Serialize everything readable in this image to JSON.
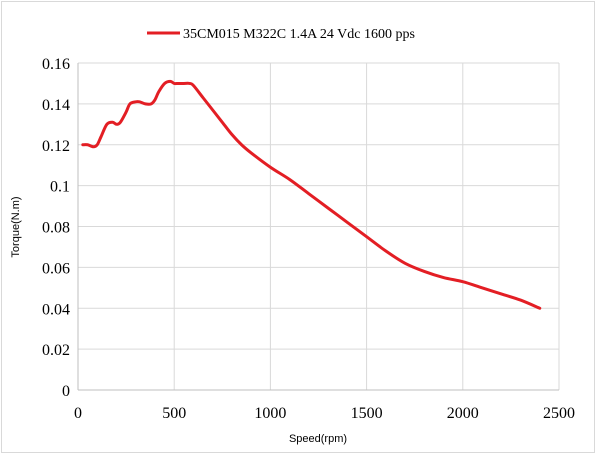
{
  "chart_data": {
    "type": "line",
    "title": "",
    "xlabel": "Speed(rpm)",
    "ylabel": "Torque(N.m)",
    "xlim": [
      0,
      2500
    ],
    "ylim": [
      0,
      0.16
    ],
    "x_ticks": [
      0,
      500,
      1000,
      1500,
      2000,
      2500
    ],
    "x_tick_labels": [
      "0",
      "500",
      "1000",
      "1500",
      "2000",
      "2500"
    ],
    "y_ticks": [
      0,
      0.02,
      0.04,
      0.06,
      0.08,
      0.1,
      0.12,
      0.14,
      0.16
    ],
    "y_tick_labels": [
      "0",
      "0.02",
      "0.04",
      "0.06",
      "0.08",
      "0.1",
      "0.12",
      "0.14",
      "0.16"
    ],
    "grid": true,
    "legend_position": "top",
    "series": [
      {
        "name": "35CM015 M322C 1.4A 24 Vdc  1600 pps",
        "color": "#e31e24",
        "x": [
          25,
          50,
          80,
          100,
          120,
          150,
          180,
          200,
          220,
          250,
          270,
          300,
          320,
          350,
          380,
          400,
          420,
          450,
          480,
          500,
          520,
          550,
          580,
          600,
          650,
          700,
          750,
          800,
          850,
          900,
          1000,
          1100,
          1200,
          1300,
          1400,
          1500,
          1600,
          1700,
          1800,
          1900,
          2000,
          2100,
          2200,
          2300,
          2400
        ],
        "y": [
          0.12,
          0.12,
          0.119,
          0.12,
          0.124,
          0.13,
          0.131,
          0.13,
          0.131,
          0.136,
          0.14,
          0.141,
          0.141,
          0.14,
          0.14,
          0.142,
          0.146,
          0.15,
          0.151,
          0.15,
          0.15,
          0.15,
          0.15,
          0.149,
          0.143,
          0.137,
          0.131,
          0.125,
          0.12,
          0.116,
          0.109,
          0.103,
          0.096,
          0.089,
          0.082,
          0.075,
          0.068,
          0.062,
          0.058,
          0.055,
          0.053,
          0.05,
          0.047,
          0.044,
          0.04
        ]
      }
    ]
  }
}
